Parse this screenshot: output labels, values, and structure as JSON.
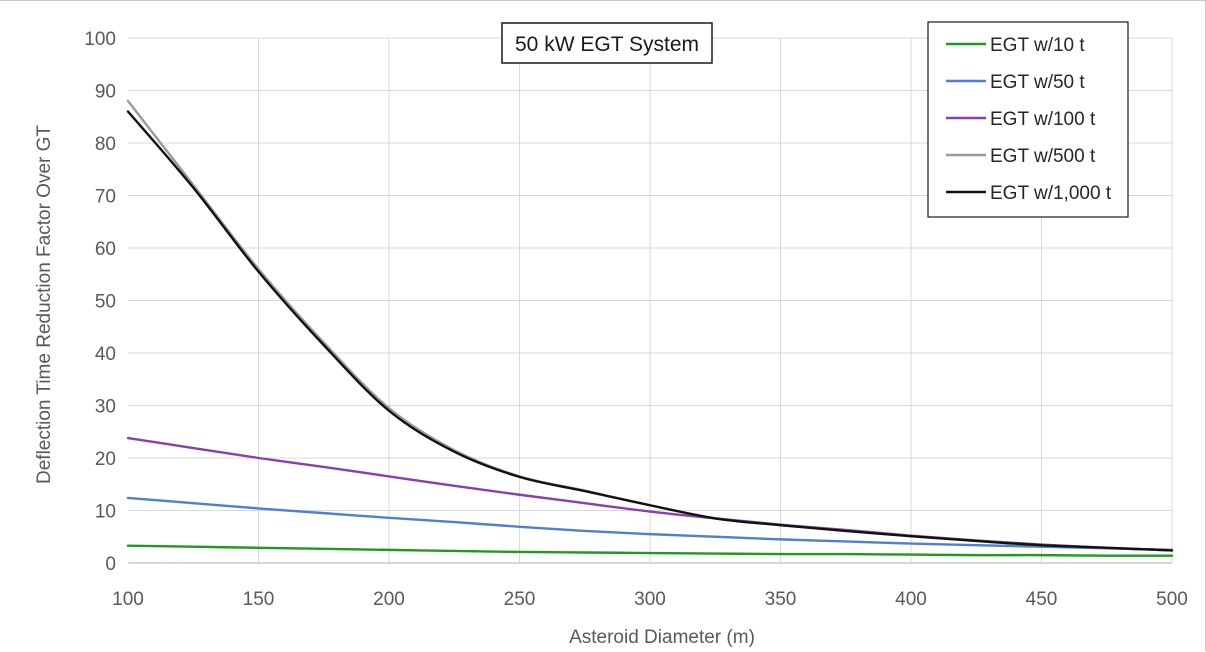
{
  "chart_data": {
    "type": "line",
    "title": "50 kW EGT System",
    "xlabel": "Asteroid Diameter (m)",
    "ylabel": "Deflection Time Reduction Factor Over GT",
    "xlim": [
      100,
      500
    ],
    "ylim": [
      0,
      100
    ],
    "xticks": [
      100,
      150,
      200,
      250,
      300,
      350,
      400,
      450,
      500
    ],
    "yticks": [
      0,
      10,
      20,
      30,
      40,
      50,
      60,
      70,
      80,
      90,
      100
    ],
    "grid": true,
    "legend_position": "top-right",
    "x": [
      100,
      125,
      150,
      175,
      200,
      225,
      250,
      275,
      300,
      325,
      350,
      375,
      400,
      425,
      450,
      475,
      500
    ],
    "series": [
      {
        "name": "EGT w/10 t",
        "color": "#1e9a1e",
        "values": [
          3.3,
          3.1,
          2.9,
          2.7,
          2.5,
          2.3,
          2.1,
          2.0,
          1.9,
          1.8,
          1.7,
          1.7,
          1.6,
          1.5,
          1.5,
          1.4,
          1.4
        ]
      },
      {
        "name": "EGT w/50 t",
        "color": "#4f7fd1",
        "values": [
          12.4,
          11.4,
          10.4,
          9.5,
          8.6,
          7.8,
          6.9,
          6.1,
          5.5,
          5.0,
          4.5,
          4.1,
          3.7,
          3.4,
          3.1,
          2.8,
          2.5
        ]
      },
      {
        "name": "EGT w/100 t",
        "color": "#8a3fb0",
        "values": [
          23.8,
          21.9,
          20.0,
          18.3,
          16.5,
          14.7,
          13.0,
          11.4,
          9.8,
          8.5,
          7.3,
          6.3,
          5.2,
          4.3,
          3.5,
          2.9,
          2.4
        ]
      },
      {
        "name": "EGT w/500 t",
        "color": "#9a9a9a",
        "values": [
          88.0,
          72.0,
          56.0,
          42.0,
          29.5,
          21.5,
          16.5,
          13.8,
          11.0,
          8.5,
          7.2,
          6.1,
          5.1,
          4.2,
          3.4,
          2.9,
          2.4
        ]
      },
      {
        "name": "EGT w/1,000 t",
        "color": "#111111",
        "values": [
          86.0,
          71.5,
          55.5,
          41.5,
          29.0,
          21.2,
          16.4,
          13.7,
          11.0,
          8.5,
          7.2,
          6.1,
          5.1,
          4.2,
          3.4,
          2.9,
          2.4
        ]
      }
    ]
  }
}
